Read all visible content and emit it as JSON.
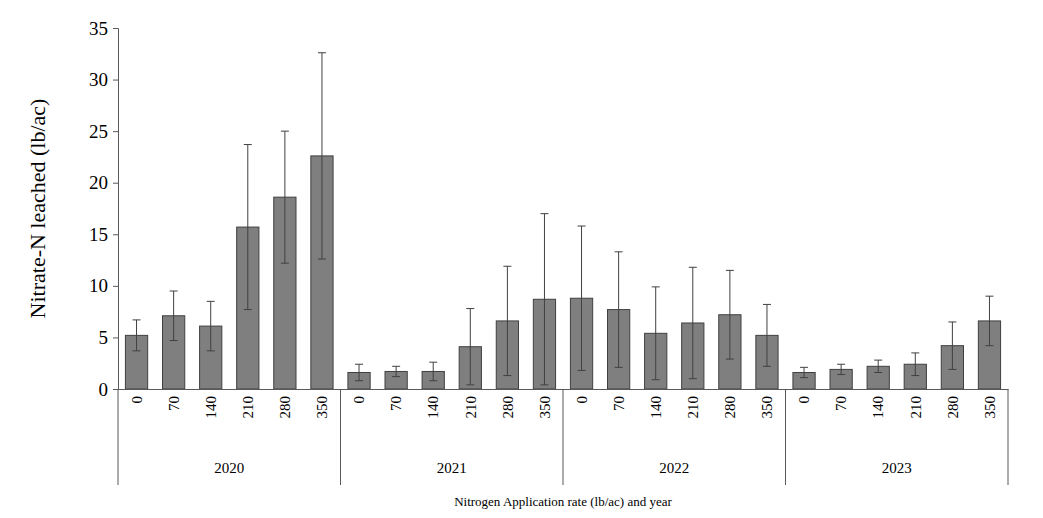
{
  "chart_data": {
    "type": "bar",
    "y_label": "Nitrate-N leached (lb/ac)",
    "x_label": "Nitrogen Application rate (lb/ac) and year",
    "x_groups": [
      "2020",
      "2021",
      "2022",
      "2023"
    ],
    "categories": [
      "0",
      "70",
      "140",
      "210",
      "280",
      "350",
      "0",
      "70",
      "140",
      "210",
      "280",
      "350",
      "0",
      "70",
      "140",
      "210",
      "280",
      "350",
      "0",
      "70",
      "140",
      "210",
      "280",
      "350"
    ],
    "values": [
      5.2,
      7.1,
      6.1,
      15.7,
      18.6,
      22.6,
      1.6,
      1.7,
      1.7,
      4.1,
      6.6,
      8.7,
      8.8,
      7.7,
      5.4,
      6.4,
      7.2,
      5.2,
      1.6,
      1.9,
      2.2,
      2.4,
      4.2,
      6.6
    ],
    "errors": [
      1.5,
      2.4,
      2.4,
      8.0,
      6.4,
      10.0,
      0.8,
      0.5,
      0.9,
      3.7,
      5.3,
      8.3,
      7.0,
      5.6,
      4.5,
      5.4,
      4.3,
      3.0,
      0.5,
      0.5,
      0.6,
      1.1,
      2.3,
      2.4
    ],
    "color": "#7f7f7f",
    "ylim": [
      0,
      35
    ],
    "yticks": [
      0,
      5,
      10,
      15,
      20,
      25,
      30,
      35
    ],
    "grid": false
  }
}
